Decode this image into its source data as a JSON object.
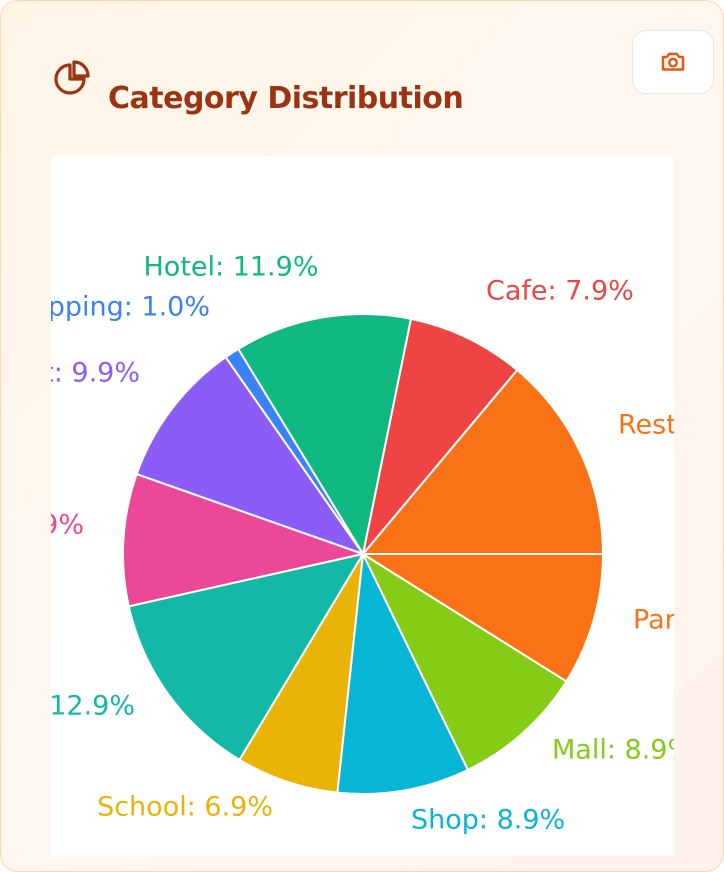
{
  "header": {
    "title": "Category Distribution"
  },
  "chart_data": {
    "type": "pie",
    "labels": [
      "Rest",
      "Cafe: 7.9%",
      "Hotel: 11.9%",
      "pping: 1.0%",
      "t: 9.9%",
      "9%",
      "12.9%",
      "School: 6.9%",
      "Shop: 8.9%",
      "Mall: 8.9%",
      "Par"
    ],
    "values": [
      13.9,
      7.9,
      11.9,
      1.0,
      9.9,
      8.9,
      12.9,
      6.9,
      8.9,
      8.9,
      8.9
    ],
    "colors": [
      "#f97316",
      "#ef4444",
      "#10b981",
      "#3b82f6",
      "#8b5cf6",
      "#ec4899",
      "#14b8a6",
      "#eab308",
      "#06b6d4",
      "#84cc16",
      "#f97316"
    ]
  }
}
